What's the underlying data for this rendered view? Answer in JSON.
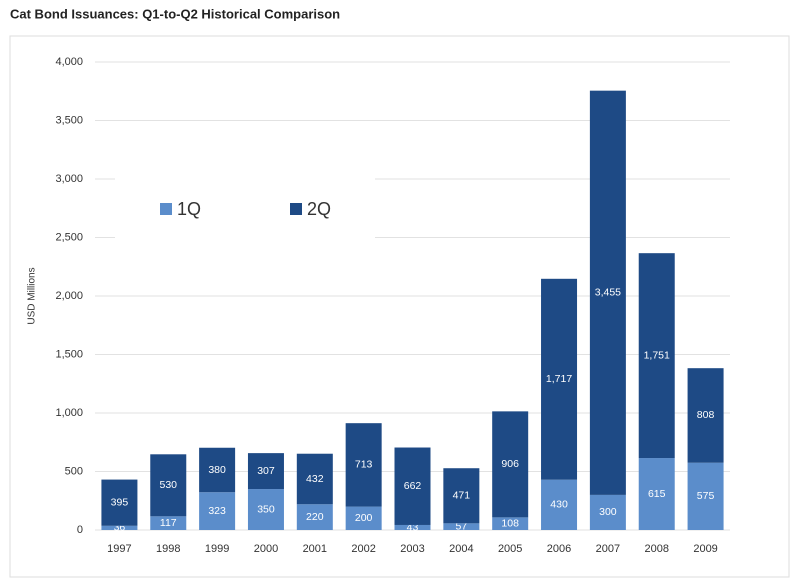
{
  "chart_data": {
    "type": "stacked_bar",
    "title": "Cat Bond Issuances: Q1-to-Q2 Historical Comparison",
    "y_label": "USD Millions",
    "categories": [
      "1997",
      "1998",
      "1999",
      "2000",
      "2001",
      "2002",
      "2003",
      "2004",
      "2005",
      "2006",
      "2007",
      "2008",
      "2009"
    ],
    "series": [
      {
        "name": "1Q",
        "color": "#5b8dcb",
        "values": [
          36,
          117,
          323,
          350,
          220,
          200,
          43,
          57,
          108,
          430,
          300,
          615,
          575
        ]
      },
      {
        "name": "2Q",
        "color": "#1e4a85",
        "values": [
          395,
          530,
          380,
          307,
          432,
          713,
          662,
          471,
          906,
          1717,
          3455,
          1751,
          808
        ],
        "value_labels": [
          "395",
          "530",
          "380",
          "307",
          "432",
          "713",
          "662",
          "471",
          "906",
          "1,717",
          "3,455",
          "1,751",
          "808"
        ]
      }
    ],
    "ylim": [
      0,
      4000
    ],
    "yticks": [
      0,
      500,
      {
        "value": 1000,
        "label": "1,000"
      },
      {
        "value": 1500,
        "label": "1,500"
      },
      {
        "value": 2000,
        "label": "2,000"
      },
      {
        "value": 2500,
        "label": "2,500"
      },
      {
        "value": 3000,
        "label": "3,000"
      },
      {
        "value": 3500,
        "label": "3,500"
      },
      {
        "value": 4000,
        "label": "4,000"
      }
    ],
    "grid": true,
    "legend": "upper left"
  }
}
